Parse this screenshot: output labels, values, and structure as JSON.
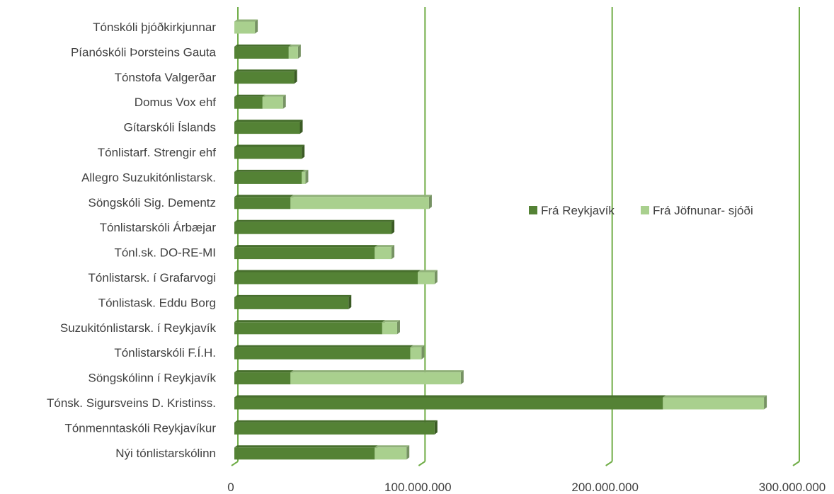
{
  "chart_data": {
    "type": "bar",
    "orientation": "horizontal",
    "stacked": true,
    "three_d": true,
    "categories": [
      "Tónskóli þjóðkirkjunnar",
      "Píanóskóli Þorsteins Gauta",
      "Tónstofa Valgerðar",
      "Domus Vox ehf",
      "Gítarskóli Íslands",
      "Tónlistarf. Strengir ehf",
      "Allegro Suzukitónlistarsk.",
      "Söngskóli Sig. Dementz",
      "Tónlistarskóli Árbæjar",
      "Tónl.sk. DO-RE-MI",
      "Tónlistarsk. í Grafarvogi",
      "Tónlistask. Eddu Borg",
      "Suzukitónlistarsk. í Reykjavík",
      "Tónlistarskóli F.Í.H.",
      "Söngskólinn í Reykjavík",
      "Tónsk. Sigursveins D. Kristinss.",
      "Tónmenntaskóli Reykjavíkur",
      "Nýi tónlistarskólinn"
    ],
    "series": [
      {
        "name": "Frá Reykjavík",
        "color": "#548235",
        "values": [
          0,
          29000000,
          32000000,
          15000000,
          35000000,
          36000000,
          36000000,
          30000000,
          84000000,
          75000000,
          98000000,
          61000000,
          79000000,
          94000000,
          30000000,
          229000000,
          107000000,
          75000000
        ]
      },
      {
        "name": "Frá Jöfnunar- sjóði",
        "color": "#a9d08e",
        "values": [
          11000000,
          5000000,
          0,
          11000000,
          0,
          0,
          2000000,
          74000000,
          0,
          9000000,
          9000000,
          0,
          8000000,
          6000000,
          91000000,
          54000000,
          0,
          17000000
        ]
      }
    ],
    "x_ticks": [
      "0",
      "100.000.000",
      "200.000.000",
      "300.000.000"
    ],
    "x_tick_values": [
      0,
      100000000,
      200000000,
      300000000
    ],
    "xlim": [
      0,
      300000000
    ],
    "grid": "vertical",
    "gridline_color": "#70ad47",
    "legend_position": "right-middle",
    "title": "",
    "xlabel": "",
    "ylabel": ""
  }
}
